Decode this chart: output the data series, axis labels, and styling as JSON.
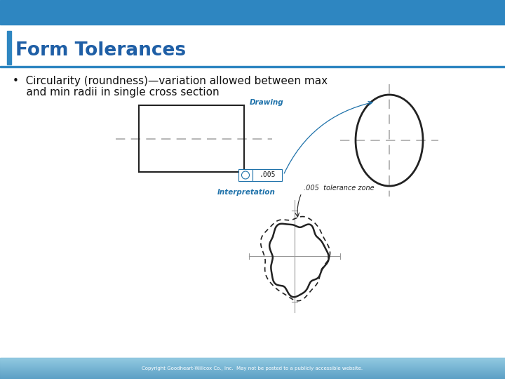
{
  "title": "Form Tolerances",
  "title_color": "#1F5FA6",
  "bullet_line1": "•  Circularity (roundness)—variation allowed between max",
  "bullet_line2": "    and min radii in single cross section",
  "drawing_label": "Drawing",
  "interp_label": "Interpretation",
  "tolerance_text": ".005  tolerance zone",
  "fcf_circle_symbol": "O",
  "fcf_value": ".005",
  "footer_text": "Copyright Goodheart-Willcox Co., Inc.  May not be posted to a publicly accessible website.",
  "bg_color": "#FFFFFF",
  "header_blue": "#2E86C1",
  "header_light": "#7EC8E3",
  "footer_blue_dark": "#4A90B8",
  "footer_blue_light": "#8EC8E0",
  "label_color": "#1F72AA",
  "centerline_color": "#AAAAAA",
  "draw_color": "#444444",
  "draw_color_dark": "#222222",
  "accent_bar_color": "#2E86C1"
}
